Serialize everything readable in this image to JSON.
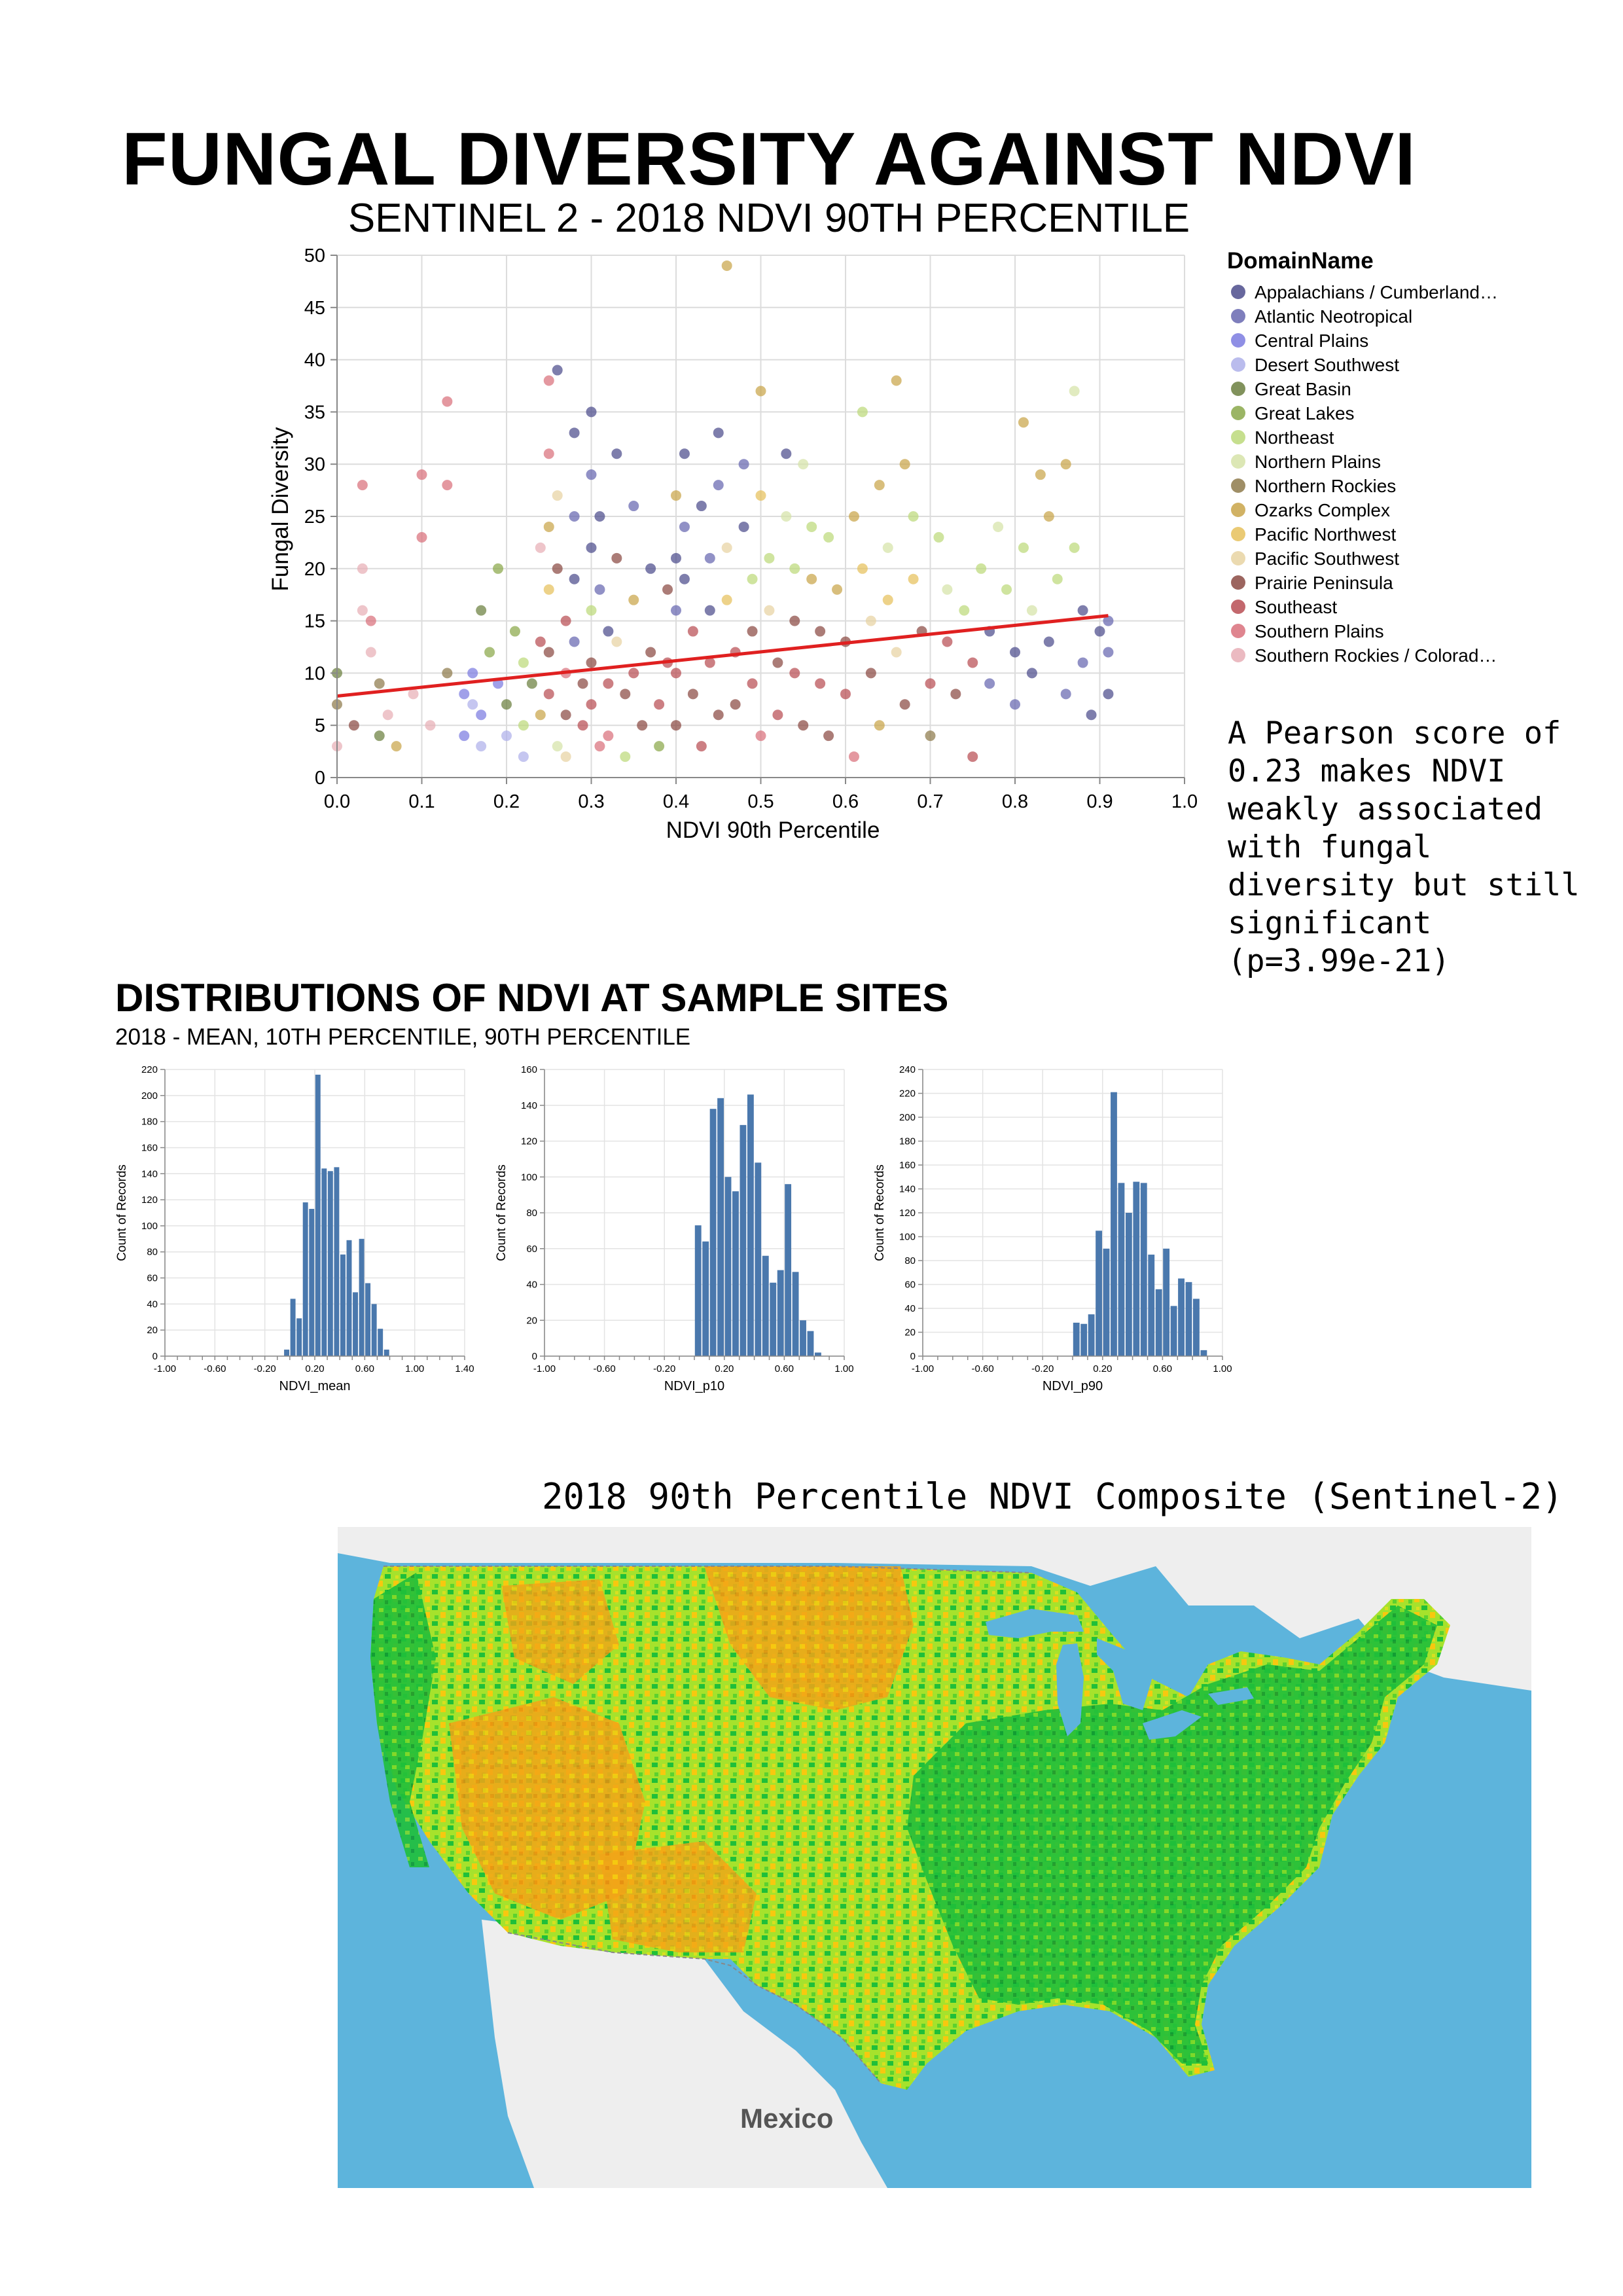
{
  "header": {
    "title": "FUNGAL DIVERSITY AGAINST NDVI",
    "subtitle": "SENTINEL 2 - 2018 NDVI 90TH PERCENTILE"
  },
  "annotation": {
    "pearson": "A Pearson score of\n0.23 makes NDVI\nweakly associated\nwith fungal\ndiversity but still\nsignificant\n(p=3.99e-21)"
  },
  "distributions": {
    "title": "DISTRIBUTIONS OF NDVI AT SAMPLE SITES",
    "subtitle": "2018 - MEAN, 10TH PERCENTILE, 90TH PERCENTILE"
  },
  "map": {
    "title": "2018 90th Percentile NDVI Composite (Sentinel-2)",
    "label_mexico": "Mexico",
    "colors": {
      "water": "#5db4dc",
      "land_outside": "#eeeeee",
      "high_ndvi": "#1fbf3a",
      "mid_ndvi": "#a6e22c",
      "low_ndvi": "#f2a417",
      "very_low_ndvi": "#f7c80f"
    }
  },
  "chart_data": [
    {
      "type": "scatter",
      "id": "scatter",
      "xlabel": "NDVI 90th Percentile",
      "ylabel": "Fungal Diversity",
      "xlim": [
        0,
        1.0
      ],
      "ylim": [
        0,
        50
      ],
      "xticks": [
        "0.0",
        "0.1",
        "0.2",
        "0.3",
        "0.4",
        "0.5",
        "0.6",
        "0.7",
        "0.8",
        "0.9",
        "1.0"
      ],
      "yticks": [
        "0",
        "5",
        "10",
        "15",
        "20",
        "25",
        "30",
        "35",
        "40",
        "45",
        "50"
      ],
      "grid": true,
      "legend": {
        "title": "DomainName",
        "position": "right",
        "entries": [
          {
            "name": "Appalachians / Cumberland…",
            "color": "#4c4c8c"
          },
          {
            "name": "Atlantic Neotropical",
            "color": "#6767b0"
          },
          {
            "name": "Central Plains",
            "color": "#7b7be0"
          },
          {
            "name": "Desert Southwest",
            "color": "#aeb0ea"
          },
          {
            "name": "Great Basin",
            "color": "#6b7f3f"
          },
          {
            "name": "Great Lakes",
            "color": "#8aa84a"
          },
          {
            "name": "Northeast",
            "color": "#bcd97a"
          },
          {
            "name": "Northern Plains",
            "color": "#d6e3a8"
          },
          {
            "name": "Northern Rockies",
            "color": "#8e7a4b"
          },
          {
            "name": "Ozarks Complex",
            "color": "#c9a549"
          },
          {
            "name": "Pacific Northwest",
            "color": "#e6c15c"
          },
          {
            "name": "Pacific Southwest",
            "color": "#e8d3a2"
          },
          {
            "name": "Prairie Peninsula",
            "color": "#8b4a43"
          },
          {
            "name": "Southeast",
            "color": "#b84d53"
          },
          {
            "name": "Southern Plains",
            "color": "#d9707b"
          },
          {
            "name": "Southern Rockies / Colorad…",
            "color": "#e8aeb6"
          }
        ]
      },
      "trendline": {
        "x": [
          0.0,
          0.91
        ],
        "y": [
          7.8,
          15.5
        ],
        "color": "#e02020"
      },
      "points": [
        [
          0.0,
          10,
          4
        ],
        [
          0.0,
          7,
          8
        ],
        [
          0.0,
          3,
          15
        ],
        [
          0.02,
          5,
          12
        ],
        [
          0.03,
          28,
          14
        ],
        [
          0.03,
          20,
          15
        ],
        [
          0.03,
          16,
          15
        ],
        [
          0.04,
          15,
          14
        ],
        [
          0.04,
          12,
          15
        ],
        [
          0.05,
          9,
          8
        ],
        [
          0.05,
          4,
          4
        ],
        [
          0.06,
          6,
          15
        ],
        [
          0.07,
          3,
          9
        ],
        [
          0.09,
          8,
          15
        ],
        [
          0.1,
          29,
          14
        ],
        [
          0.1,
          23,
          14
        ],
        [
          0.11,
          5,
          15
        ],
        [
          0.13,
          36,
          14
        ],
        [
          0.13,
          28,
          14
        ],
        [
          0.13,
          10,
          8
        ],
        [
          0.15,
          8,
          2
        ],
        [
          0.15,
          4,
          2
        ],
        [
          0.16,
          7,
          3
        ],
        [
          0.16,
          10,
          2
        ],
        [
          0.17,
          6,
          2
        ],
        [
          0.17,
          3,
          3
        ],
        [
          0.17,
          16,
          4
        ],
        [
          0.18,
          12,
          5
        ],
        [
          0.19,
          9,
          2
        ],
        [
          0.19,
          20,
          5
        ],
        [
          0.2,
          7,
          4
        ],
        [
          0.2,
          4,
          3
        ],
        [
          0.21,
          14,
          5
        ],
        [
          0.22,
          11,
          6
        ],
        [
          0.22,
          5,
          6
        ],
        [
          0.22,
          2,
          3
        ],
        [
          0.23,
          9,
          4
        ],
        [
          0.24,
          22,
          15
        ],
        [
          0.24,
          13,
          13
        ],
        [
          0.24,
          6,
          9
        ],
        [
          0.25,
          38,
          14
        ],
        [
          0.25,
          31,
          14
        ],
        [
          0.25,
          24,
          9
        ],
        [
          0.25,
          18,
          10
        ],
        [
          0.25,
          12,
          12
        ],
        [
          0.25,
          8,
          13
        ],
        [
          0.26,
          3,
          7
        ],
        [
          0.26,
          39,
          0
        ],
        [
          0.26,
          27,
          11
        ],
        [
          0.26,
          20,
          12
        ],
        [
          0.27,
          15,
          13
        ],
        [
          0.27,
          10,
          14
        ],
        [
          0.27,
          6,
          12
        ],
        [
          0.27,
          2,
          11
        ],
        [
          0.28,
          33,
          0
        ],
        [
          0.28,
          25,
          1
        ],
        [
          0.28,
          19,
          0
        ],
        [
          0.28,
          13,
          1
        ],
        [
          0.29,
          9,
          12
        ],
        [
          0.29,
          5,
          13
        ],
        [
          0.3,
          35,
          0
        ],
        [
          0.3,
          29,
          1
        ],
        [
          0.3,
          22,
          0
        ],
        [
          0.3,
          16,
          6
        ],
        [
          0.3,
          11,
          12
        ],
        [
          0.3,
          7,
          13
        ],
        [
          0.31,
          3,
          14
        ],
        [
          0.31,
          25,
          0
        ],
        [
          0.31,
          18,
          1
        ],
        [
          0.32,
          14,
          0
        ],
        [
          0.32,
          9,
          13
        ],
        [
          0.32,
          4,
          14
        ],
        [
          0.33,
          31,
          0
        ],
        [
          0.33,
          21,
          12
        ],
        [
          0.33,
          13,
          11
        ],
        [
          0.34,
          8,
          12
        ],
        [
          0.34,
          2,
          6
        ],
        [
          0.35,
          26,
          1
        ],
        [
          0.35,
          17,
          9
        ],
        [
          0.35,
          10,
          13
        ],
        [
          0.36,
          5,
          12
        ],
        [
          0.37,
          20,
          0
        ],
        [
          0.37,
          12,
          12
        ],
        [
          0.38,
          7,
          13
        ],
        [
          0.38,
          3,
          5
        ],
        [
          0.39,
          18,
          12
        ],
        [
          0.39,
          11,
          13
        ],
        [
          0.4,
          27,
          9
        ],
        [
          0.4,
          21,
          0
        ],
        [
          0.4,
          16,
          1
        ],
        [
          0.4,
          10,
          13
        ],
        [
          0.4,
          5,
          12
        ],
        [
          0.41,
          31,
          0
        ],
        [
          0.41,
          24,
          1
        ],
        [
          0.41,
          19,
          0
        ],
        [
          0.42,
          14,
          13
        ],
        [
          0.42,
          8,
          12
        ],
        [
          0.43,
          3,
          13
        ],
        [
          0.43,
          26,
          0
        ],
        [
          0.44,
          21,
          1
        ],
        [
          0.44,
          16,
          0
        ],
        [
          0.44,
          11,
          13
        ],
        [
          0.45,
          6,
          12
        ],
        [
          0.45,
          33,
          0
        ],
        [
          0.45,
          28,
          1
        ],
        [
          0.46,
          49,
          9
        ],
        [
          0.46,
          22,
          11
        ],
        [
          0.46,
          17,
          10
        ],
        [
          0.47,
          12,
          13
        ],
        [
          0.47,
          7,
          12
        ],
        [
          0.48,
          30,
          1
        ],
        [
          0.48,
          24,
          0
        ],
        [
          0.49,
          19,
          6
        ],
        [
          0.49,
          14,
          12
        ],
        [
          0.49,
          9,
          13
        ],
        [
          0.5,
          4,
          14
        ],
        [
          0.5,
          37,
          9
        ],
        [
          0.5,
          27,
          10
        ],
        [
          0.51,
          21,
          6
        ],
        [
          0.51,
          16,
          11
        ],
        [
          0.52,
          11,
          12
        ],
        [
          0.52,
          6,
          13
        ],
        [
          0.53,
          31,
          0
        ],
        [
          0.53,
          25,
          7
        ],
        [
          0.54,
          20,
          6
        ],
        [
          0.54,
          15,
          12
        ],
        [
          0.54,
          10,
          13
        ],
        [
          0.55,
          5,
          12
        ],
        [
          0.55,
          30,
          7
        ],
        [
          0.56,
          24,
          6
        ],
        [
          0.56,
          19,
          9
        ],
        [
          0.57,
          14,
          12
        ],
        [
          0.57,
          9,
          13
        ],
        [
          0.58,
          4,
          12
        ],
        [
          0.58,
          23,
          6
        ],
        [
          0.59,
          18,
          9
        ],
        [
          0.6,
          13,
          12
        ],
        [
          0.6,
          8,
          13
        ],
        [
          0.61,
          2,
          14
        ],
        [
          0.61,
          25,
          9
        ],
        [
          0.62,
          35,
          6
        ],
        [
          0.62,
          20,
          10
        ],
        [
          0.63,
          15,
          11
        ],
        [
          0.63,
          10,
          12
        ],
        [
          0.64,
          5,
          9
        ],
        [
          0.64,
          28,
          9
        ],
        [
          0.65,
          22,
          7
        ],
        [
          0.65,
          17,
          10
        ],
        [
          0.66,
          38,
          9
        ],
        [
          0.66,
          12,
          11
        ],
        [
          0.67,
          7,
          12
        ],
        [
          0.67,
          30,
          9
        ],
        [
          0.68,
          25,
          6
        ],
        [
          0.68,
          19,
          10
        ],
        [
          0.69,
          14,
          12
        ],
        [
          0.7,
          9,
          13
        ],
        [
          0.7,
          4,
          8
        ],
        [
          0.71,
          23,
          6
        ],
        [
          0.72,
          18,
          7
        ],
        [
          0.72,
          13,
          13
        ],
        [
          0.73,
          8,
          12
        ],
        [
          0.74,
          16,
          6
        ],
        [
          0.75,
          11,
          13
        ],
        [
          0.75,
          2,
          13
        ],
        [
          0.76,
          20,
          6
        ],
        [
          0.77,
          14,
          0
        ],
        [
          0.77,
          9,
          1
        ],
        [
          0.78,
          24,
          7
        ],
        [
          0.79,
          18,
          6
        ],
        [
          0.8,
          12,
          0
        ],
        [
          0.8,
          7,
          1
        ],
        [
          0.81,
          34,
          9
        ],
        [
          0.81,
          22,
          6
        ],
        [
          0.82,
          16,
          7
        ],
        [
          0.82,
          10,
          0
        ],
        [
          0.83,
          29,
          9
        ],
        [
          0.84,
          25,
          9
        ],
        [
          0.84,
          13,
          0
        ],
        [
          0.85,
          19,
          6
        ],
        [
          0.86,
          8,
          1
        ],
        [
          0.86,
          30,
          9
        ],
        [
          0.87,
          37,
          7
        ],
        [
          0.87,
          22,
          6
        ],
        [
          0.88,
          16,
          0
        ],
        [
          0.88,
          11,
          1
        ],
        [
          0.89,
          6,
          0
        ],
        [
          0.9,
          14,
          0
        ],
        [
          0.91,
          12,
          1
        ],
        [
          0.91,
          8,
          0
        ],
        [
          0.91,
          15,
          1
        ]
      ]
    },
    {
      "type": "bar",
      "id": "hist-mean",
      "xlabel": "NDVI_mean",
      "ylabel": "Count of Records",
      "xlim": [
        -1.0,
        1.4
      ],
      "ylim": [
        0,
        220
      ],
      "xticks": [
        "-1.00",
        "-0.60",
        "-0.20",
        "0.20",
        "0.60",
        "1.00",
        "1.40"
      ],
      "yticks": [
        "0",
        "20",
        "40",
        "60",
        "80",
        "100",
        "120",
        "140",
        "160",
        "180",
        "200",
        "220"
      ],
      "bin_width": 0.05,
      "bin_start": -0.05,
      "values": [
        5,
        44,
        29,
        118,
        113,
        216,
        144,
        142,
        145,
        78,
        89,
        49,
        90,
        56,
        40,
        21,
        5
      ]
    },
    {
      "type": "bar",
      "id": "hist-p10",
      "xlabel": "NDVI_p10",
      "ylabel": "Count of Records",
      "xlim": [
        -1.0,
        1.0
      ],
      "ylim": [
        0,
        160
      ],
      "xticks": [
        "-1.00",
        "-0.60",
        "-0.20",
        "0.20",
        "0.60",
        "1.00"
      ],
      "yticks": [
        "0",
        "20",
        "40",
        "60",
        "80",
        "100",
        "120",
        "140",
        "160"
      ],
      "bin_width": 0.05,
      "bin_start": 0.0,
      "values": [
        73,
        64,
        138,
        144,
        100,
        92,
        129,
        146,
        108,
        56,
        41,
        48,
        96,
        47,
        20,
        14,
        2
      ]
    },
    {
      "type": "bar",
      "id": "hist-p90",
      "xlabel": "NDVI_p90",
      "ylabel": "Count of Records",
      "xlim": [
        -1.0,
        1.0
      ],
      "ylim": [
        0,
        240
      ],
      "xticks": [
        "-1.00",
        "-0.60",
        "-0.20",
        "0.20",
        "0.60",
        "1.00"
      ],
      "yticks": [
        "0",
        "20",
        "40",
        "60",
        "80",
        "100",
        "120",
        "140",
        "160",
        "180",
        "200",
        "220",
        "240"
      ],
      "bin_width": 0.05,
      "bin_start": 0.0,
      "values": [
        28,
        27,
        35,
        105,
        90,
        221,
        145,
        120,
        146,
        145,
        85,
        56,
        90,
        42,
        65,
        62,
        48,
        5
      ]
    }
  ]
}
